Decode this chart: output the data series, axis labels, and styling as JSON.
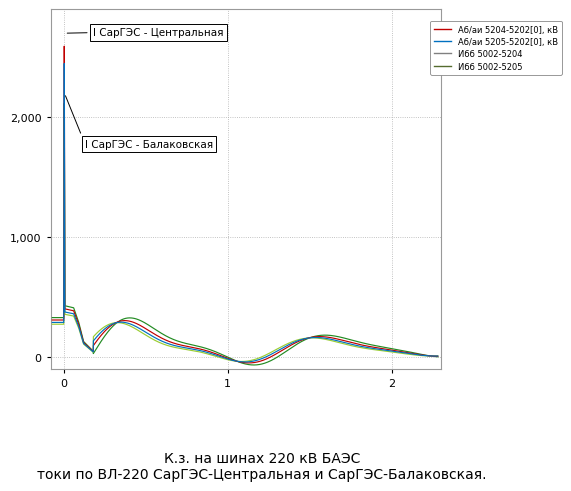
{
  "title": "К.з. на шинах 220 кВ БАЭС\nтоки по ВЛ-220 СарГЭС-Центральная и СарГЭС-Балаковская.",
  "title_fontsize": 10,
  "annotation1": "I СарГЭС - Центральная",
  "annotation2": "I СарГЭС - Балаковская",
  "legend_entries": [
    "Аб/аи 5204-5202[0], кВ",
    "Аб/аи 5205-5202[0], кВ",
    "Ибб 5002-5204",
    "Ибб 5002-5205"
  ],
  "legend_colors": [
    "#c00000",
    "#0070c0",
    "#808080",
    "#556b2f"
  ],
  "legend_linestyles": [
    "-",
    "-",
    "-",
    "-"
  ],
  "xlim": [
    -0.08,
    2.3
  ],
  "ylim": [
    -100,
    2900
  ],
  "yticks": [
    0,
    1000,
    2000
  ],
  "xticks": [
    0,
    1,
    2
  ],
  "bg_color": "#ffffff",
  "line_colors": [
    "#c00000",
    "#0070c0",
    "#228b22",
    "#9acd32"
  ],
  "pre_level": 300,
  "peak_central": 2700,
  "peak_balak": 2200
}
